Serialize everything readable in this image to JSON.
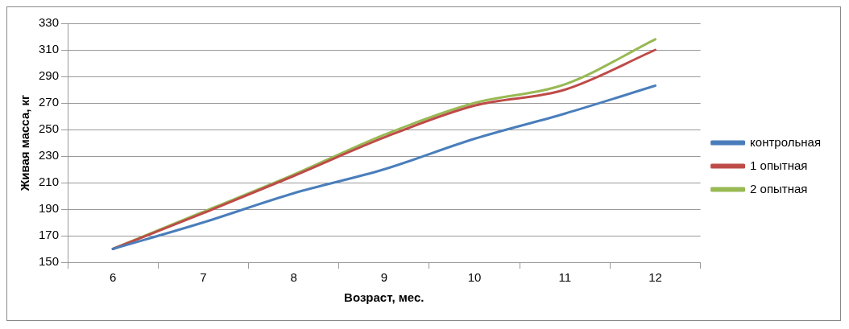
{
  "chart_data": {
    "type": "line",
    "xlabel": "Возраст, мес.",
    "ylabel": "Живая масса, кг",
    "categories": [
      "6",
      "7",
      "8",
      "9",
      "10",
      "11",
      "12"
    ],
    "series": [
      {
        "name": "контрольная",
        "color": "#4a7ebb",
        "values": [
          160,
          180,
          202,
          220,
          243,
          262,
          283
        ]
      },
      {
        "name": "1 опытная",
        "color": "#be4b48",
        "values": [
          160,
          187,
          215,
          244,
          268,
          280,
          310
        ]
      },
      {
        "name": "2 опытная",
        "color": "#98b954",
        "values": [
          160,
          188,
          216,
          246,
          270,
          284,
          318
        ]
      }
    ],
    "ylim": [
      150,
      330
    ],
    "yticks": [
      150,
      170,
      190,
      210,
      230,
      250,
      270,
      290,
      310,
      330
    ],
    "grid": "y",
    "legend": "right",
    "marker": "none",
    "line_style": "solid"
  }
}
